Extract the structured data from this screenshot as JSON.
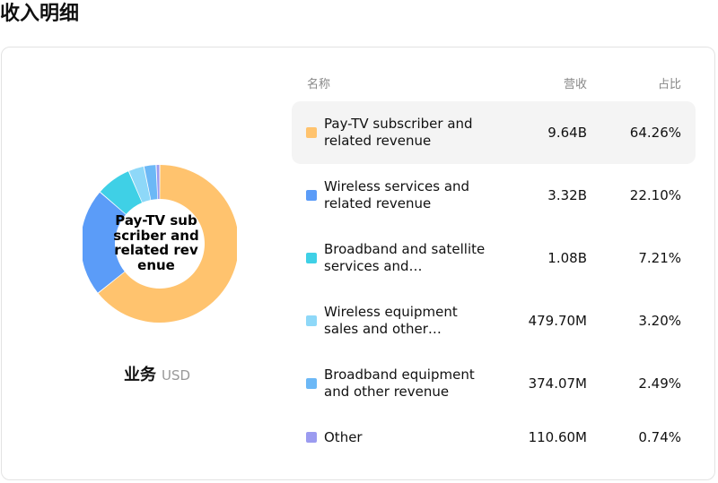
{
  "page": {
    "title": "收入明细"
  },
  "donut": {
    "center_label": "Pay-TV subscriber and related revenue",
    "segment_name": "业务",
    "unit": "USD"
  },
  "table": {
    "headers": {
      "name": "名称",
      "revenue": "营收",
      "share": "占比"
    },
    "rows": [
      {
        "name": "Pay-TV subscriber and related revenue",
        "revenue": "9.64B",
        "share": "64.26%",
        "color": "#FFC36E"
      },
      {
        "name": "Wireless services and related revenue",
        "revenue": "3.32B",
        "share": "22.10%",
        "color": "#5B9CF8"
      },
      {
        "name": "Broadband and satellite services and…",
        "revenue": "1.08B",
        "share": "7.21%",
        "color": "#3FD0E6"
      },
      {
        "name": "Wireless equipment sales and other…",
        "revenue": "479.70M",
        "share": "3.20%",
        "color": "#8ED8F8"
      },
      {
        "name": "Broadband equipment and other revenue",
        "revenue": "374.07M",
        "share": "2.49%",
        "color": "#6CB8F6"
      },
      {
        "name": "Other",
        "revenue": "110.60M",
        "share": "0.74%",
        "color": "#9B9BF0"
      }
    ]
  },
  "chart_data": {
    "type": "pie",
    "title": "收入明细",
    "unit": "USD",
    "categories": [
      "Pay-TV subscriber and related revenue",
      "Wireless services and related revenue",
      "Broadband and satellite services and…",
      "Wireless equipment sales and other…",
      "Broadband equipment and other revenue",
      "Other"
    ],
    "values": [
      64.26,
      22.1,
      7.21,
      3.2,
      2.49,
      0.74
    ],
    "colors": [
      "#FFC36E",
      "#5B9CF8",
      "#3FD0E6",
      "#8ED8F8",
      "#6CB8F6",
      "#9B9BF0"
    ],
    "highlighted": "Pay-TV subscriber and related revenue"
  }
}
